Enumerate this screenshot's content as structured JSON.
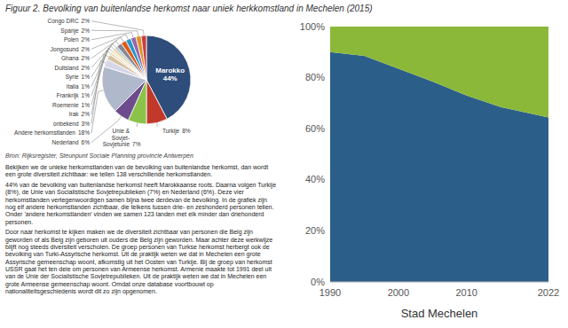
{
  "chart_data": [
    {
      "type": "pie",
      "title": "Figuur 2. Bevolking van buitenlandse herkomst naar uniek herkkomstland in Mechelen (2015)",
      "categories": [
        "Marokko",
        "Turkije",
        "Unie &\nSovjet-\nSovjetunie",
        "Nederland",
        "Andere herkomstlanden",
        "onbekend",
        "Irak",
        "Roemenie",
        "Frankrijk",
        "Italia",
        "Syrie",
        "Duitsland",
        "Ghana",
        "Jongosund",
        "Polen",
        "Spanje",
        "Congo DRC"
      ],
      "values": [
        44,
        8,
        7,
        6,
        18,
        3,
        2,
        1,
        1,
        1,
        1,
        2,
        2,
        2,
        2,
        2,
        2
      ],
      "value_labels": [
        "44%",
        "8%",
        "7%",
        "6%",
        "18%",
        "3%",
        "2%",
        "1%",
        "1%",
        "1%",
        "1%",
        "2%",
        "2%",
        "2%",
        "2%",
        "2%",
        "2%"
      ],
      "colors": [
        "#2e4d7b",
        "#c0392b",
        "#8bc34a",
        "#6d4c8e",
        "#b0b8cc",
        "#d6d6e8",
        "#d4c0a0",
        "#eddcbc",
        "#f5e8cc",
        "#e8d0a8",
        "#b0ccd8",
        "#888890",
        "#e05818",
        "#2898cc",
        "#9868a8",
        "#e09028",
        "#c84040"
      ],
      "data_labels": true,
      "annotations": [
        "Bron: Rijksregister, Steunpunt Sociale Planning provincie Antwerpen",
        "Bekijken we de unieke herkomstlanden van de bevolking van buitenlandse herkomst, dan wordt een grote diversiteit zichtbaar: we tellen 138 verschillende herkomstlanden.",
        "44% van de bevolking van buitenlandse herkomst heeft Marokkaanse roots. Daarna volgen Turkije (8%), de Unie van Socialistische Sovjetrepublieken (7%) en Nederland (6%). Deze vier herkomstlanden vertegenwoordigen samen bijna twee derdevan de bevolking. In de grafiek zijn nog elf andere herkomstlanden zichtbaar, die telkens tussen drie- en zeshonderd personen tellen. Onder 'andere herkomstlanden' vinden we samen 123 landen met elk minder dan driehonderd personen.",
        "Door naar herkomst te kijken maken we de diversiteit zichtbaar van personen die Belg zijn geworden of als Belg zijn geboren uit ouders die Belg zijn geworden. Maar achter deze werkwijze blijft nog steeds diversiteit verscholen. De groep personen van Turkse herkomst herbergt ook de bevolking van Turki-Assyrische herkomst. Uit de praktijk weten we dat in Mechelen een grote Assyrische gemeenschap woont, afkomstig uit het Oosten van Turkije. Bij de groep van herkomst USSR gaat het ten dele om personen van Armeense herkomst. Armenie maakte tot 1991 deel uit van de Unie der Socialistische Sovjetrepublieken. Uit de praktijk weten we dat in Mechelen een grote Armeense gemeenschap woont. Omdat onze database voortbouwt op nationaliteitsgeschiedenis wordt dit zo zijn opgenomen."
      ]
    },
    {
      "type": "area",
      "stacked": true,
      "grid": false,
      "xlabel": "Stad Mechelen",
      "x": [
        1990,
        1995,
        2000,
        2005,
        2010,
        2015,
        2022
      ],
      "series": [
        {
          "color": "#2b5f8a",
          "values": [
            90.0,
            88.5,
            83.5,
            78.5,
            73.0,
            68.5,
            64.4
          ]
        },
        {
          "color": "#8cb83a",
          "values": [
            10.0,
            11.5,
            16.5,
            21.5,
            27.0,
            31.5,
            35.6
          ]
        }
      ],
      "xlim": [
        1990,
        2022
      ],
      "ylim": [
        0,
        100
      ],
      "xticks": [
        1990,
        2000,
        2010,
        2022
      ],
      "yticks": [
        {
          "value": 0,
          "label": "0%"
        },
        {
          "value": 20,
          "label": "20%"
        },
        {
          "value": 40,
          "label": "40%"
        },
        {
          "value": 60,
          "label": "60%"
        },
        {
          "value": 80,
          "label": "80%"
        },
        {
          "value": 100,
          "label": "100%"
        }
      ]
    }
  ]
}
